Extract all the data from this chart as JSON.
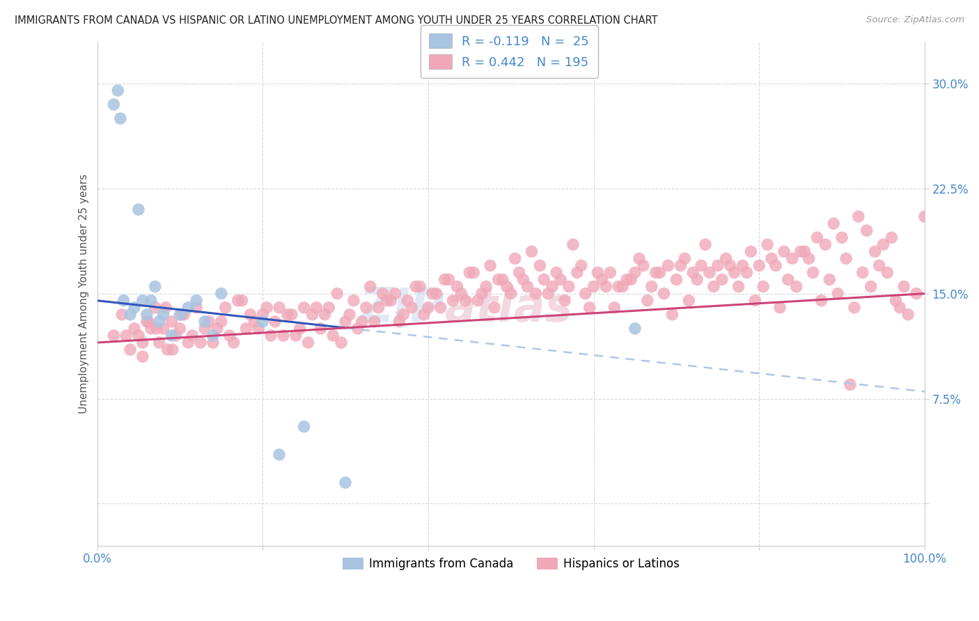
{
  "title": "IMMIGRANTS FROM CANADA VS HISPANIC OR LATINO UNEMPLOYMENT AMONG YOUTH UNDER 25 YEARS CORRELATION CHART",
  "source": "Source: ZipAtlas.com",
  "ylabel": "Unemployment Among Youth under 25 years",
  "watermark_line1": "ZIP",
  "watermark_line2": "atlas",
  "blue_color": "#a8c4e0",
  "pink_color": "#f0a8b8",
  "trend_blue_color": "#3355bb",
  "trend_pink_color": "#cc4477",
  "trend_dash_color": "#aac8e8",
  "background_color": "#ffffff",
  "grid_color": "#d8d8d8",
  "blue_scatter_x": [
    2.0,
    2.5,
    2.8,
    3.2,
    4.0,
    4.5,
    5.0,
    5.5,
    6.0,
    6.5,
    7.0,
    7.5,
    8.0,
    9.0,
    10.0,
    11.0,
    12.0,
    13.0,
    14.0,
    15.0,
    20.0,
    22.0,
    25.0,
    30.0,
    65.0
  ],
  "blue_scatter_y": [
    28.5,
    29.5,
    27.5,
    14.5,
    13.5,
    14.0,
    21.0,
    14.5,
    13.5,
    14.5,
    15.5,
    13.0,
    13.5,
    12.0,
    13.5,
    14.0,
    14.5,
    13.0,
    12.0,
    15.0,
    13.0,
    3.5,
    5.5,
    1.5,
    12.5
  ],
  "pink_scatter_x": [
    2.0,
    3.0,
    4.0,
    4.5,
    5.0,
    5.5,
    6.0,
    6.5,
    7.0,
    7.5,
    8.0,
    8.5,
    9.0,
    9.5,
    10.0,
    10.5,
    11.0,
    12.0,
    13.0,
    14.0,
    15.0,
    16.0,
    17.0,
    18.0,
    19.0,
    20.0,
    21.0,
    22.0,
    23.0,
    24.0,
    25.0,
    26.0,
    27.0,
    28.0,
    29.0,
    30.0,
    31.0,
    32.0,
    33.0,
    34.0,
    35.0,
    36.0,
    37.0,
    38.0,
    39.0,
    40.0,
    41.0,
    42.0,
    43.0,
    44.0,
    45.0,
    46.0,
    47.0,
    48.0,
    49.0,
    50.0,
    51.0,
    52.0,
    53.0,
    54.0,
    55.0,
    56.0,
    57.0,
    58.0,
    59.0,
    60.0,
    61.0,
    62.0,
    63.0,
    64.0,
    65.0,
    66.0,
    67.0,
    68.0,
    69.0,
    70.0,
    71.0,
    72.0,
    73.0,
    74.0,
    75.0,
    76.0,
    77.0,
    78.0,
    79.0,
    80.0,
    81.0,
    82.0,
    83.0,
    84.0,
    85.0,
    86.0,
    87.0,
    88.0,
    89.0,
    90.0,
    91.0,
    92.0,
    93.0,
    94.0,
    95.0,
    96.0,
    97.0,
    98.0,
    99.0,
    100.0,
    3.5,
    5.5,
    6.2,
    7.2,
    8.3,
    9.1,
    10.2,
    11.5,
    12.5,
    13.5,
    14.5,
    15.5,
    16.5,
    17.5,
    18.5,
    19.5,
    20.5,
    21.5,
    22.5,
    23.5,
    24.5,
    25.5,
    26.5,
    27.5,
    28.5,
    29.5,
    30.5,
    31.5,
    32.5,
    33.5,
    34.5,
    35.5,
    36.5,
    37.5,
    38.5,
    39.5,
    40.5,
    41.5,
    42.5,
    43.5,
    44.5,
    45.5,
    46.5,
    47.5,
    48.5,
    49.5,
    50.5,
    51.5,
    52.5,
    53.5,
    54.5,
    55.5,
    56.5,
    57.5,
    58.5,
    59.5,
    60.5,
    61.5,
    62.5,
    63.5,
    64.5,
    65.5,
    66.5,
    67.5,
    68.5,
    69.5,
    70.5,
    71.5,
    72.5,
    73.5,
    74.5,
    75.5,
    76.5,
    77.5,
    78.5,
    79.5,
    80.5,
    81.5,
    82.5,
    83.5,
    84.5,
    85.5,
    86.5,
    87.5,
    88.5,
    89.5,
    90.5,
    91.5,
    92.5,
    93.5,
    94.5,
    95.5,
    96.5,
    97.5
  ],
  "pink_scatter_y": [
    12.0,
    13.5,
    11.0,
    12.5,
    12.0,
    10.5,
    13.0,
    12.5,
    14.0,
    11.5,
    12.5,
    11.0,
    13.0,
    12.0,
    12.5,
    13.5,
    11.5,
    14.0,
    12.5,
    11.5,
    13.0,
    12.0,
    14.5,
    12.5,
    13.0,
    13.5,
    12.0,
    14.0,
    13.5,
    12.0,
    14.0,
    13.5,
    12.5,
    14.0,
    15.0,
    13.0,
    14.5,
    13.0,
    15.5,
    14.0,
    14.5,
    15.0,
    13.5,
    14.0,
    15.5,
    14.0,
    15.0,
    16.0,
    14.5,
    15.0,
    16.5,
    14.5,
    15.5,
    14.0,
    16.0,
    15.0,
    16.5,
    15.5,
    15.0,
    16.0,
    15.5,
    16.0,
    15.5,
    16.5,
    15.0,
    15.5,
    16.0,
    16.5,
    15.5,
    16.0,
    16.5,
    17.0,
    15.5,
    16.5,
    17.0,
    16.0,
    17.5,
    16.5,
    17.0,
    16.5,
    17.0,
    17.5,
    16.5,
    17.0,
    18.0,
    17.0,
    18.5,
    17.0,
    18.0,
    17.5,
    18.0,
    17.5,
    19.0,
    18.5,
    20.0,
    19.0,
    8.5,
    20.5,
    19.5,
    18.0,
    18.5,
    19.0,
    14.0,
    13.5,
    15.0,
    20.5,
    12.0,
    11.5,
    13.0,
    12.5,
    14.0,
    11.0,
    13.5,
    12.0,
    11.5,
    13.0,
    12.5,
    14.0,
    11.5,
    14.5,
    13.5,
    12.5,
    14.0,
    13.0,
    12.0,
    13.5,
    12.5,
    11.5,
    14.0,
    13.5,
    12.0,
    11.5,
    13.5,
    12.5,
    14.0,
    13.0,
    15.0,
    14.5,
    13.0,
    14.5,
    15.5,
    13.5,
    15.0,
    14.0,
    16.0,
    15.5,
    14.5,
    16.5,
    15.0,
    17.0,
    16.0,
    15.5,
    17.5,
    16.0,
    18.0,
    17.0,
    15.0,
    16.5,
    14.5,
    18.5,
    17.0,
    14.0,
    16.5,
    15.5,
    14.0,
    15.5,
    16.0,
    17.5,
    14.5,
    16.5,
    15.0,
    13.5,
    17.0,
    14.5,
    16.0,
    18.5,
    15.5,
    16.0,
    17.0,
    15.5,
    16.5,
    14.5,
    15.5,
    17.5,
    14.0,
    16.0,
    15.5,
    18.0,
    16.5,
    14.5,
    16.0,
    15.0,
    17.5,
    14.0,
    16.5,
    15.5,
    17.0,
    16.5,
    14.5,
    15.5
  ]
}
